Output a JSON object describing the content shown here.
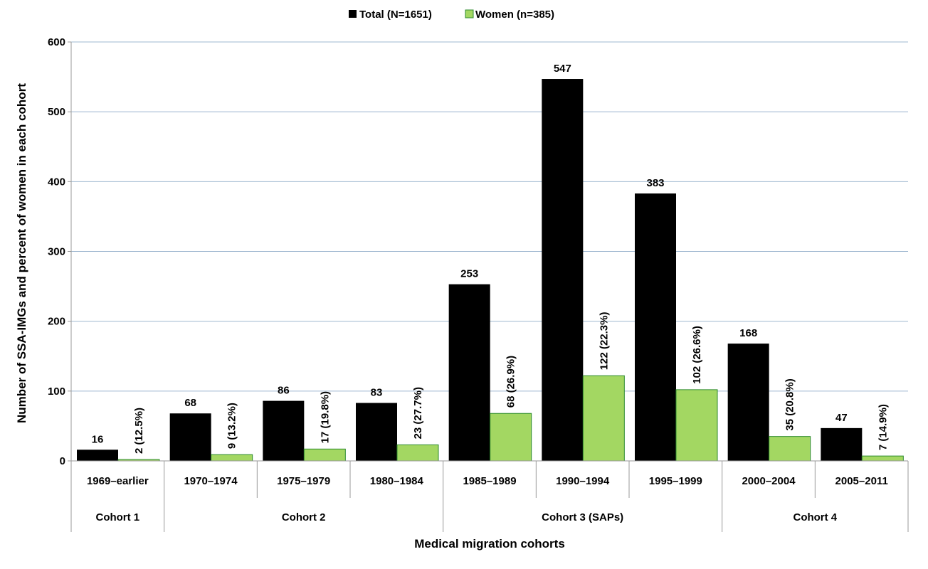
{
  "chart_data": {
    "type": "bar",
    "title": "",
    "xlabel": "Medical migration cohorts",
    "ylabel": "Number of SSA-IMGs and percent of women in each cohort",
    "ylim": [
      0,
      600
    ],
    "yticks": [
      0,
      100,
      200,
      300,
      400,
      500,
      600
    ],
    "grid": true,
    "legend_position": "top-center",
    "categories": [
      "1969–earlier",
      "1970–1974",
      "1975–1979",
      "1980–1984",
      "1985–1989",
      "1990–1994",
      "1995–1999",
      "2000–2004",
      "2005–2011"
    ],
    "series": [
      {
        "name": "Total (N=1651)",
        "color": "#000000",
        "values": [
          16,
          68,
          86,
          83,
          253,
          547,
          383,
          168,
          47
        ],
        "labels": [
          "16",
          "68",
          "86",
          "83",
          "253",
          "547",
          "383",
          "168",
          "47"
        ]
      },
      {
        "name": "Women (n=385)",
        "color": "#a3d762",
        "stroke": "#2e8b2e",
        "values": [
          2,
          9,
          17,
          23,
          68,
          122,
          102,
          35,
          7
        ],
        "labels": [
          "2 (12.5%)",
          "9 (13.2%)",
          "17 (19.8%)",
          "23 (27.7%)",
          "68 (26.9%)",
          "122 (22.3%)",
          "102 (26.6%)",
          "35 (20.8%)",
          "7 (14.9%)"
        ]
      }
    ],
    "groups": [
      {
        "label": "Cohort 1",
        "start": 0,
        "end": 0
      },
      {
        "label": "Cohort 2",
        "start": 1,
        "end": 3
      },
      {
        "label": "Cohort 3 (SAPs)",
        "start": 4,
        "end": 6
      },
      {
        "label": "Cohort 4",
        "start": 7,
        "end": 8
      }
    ]
  }
}
